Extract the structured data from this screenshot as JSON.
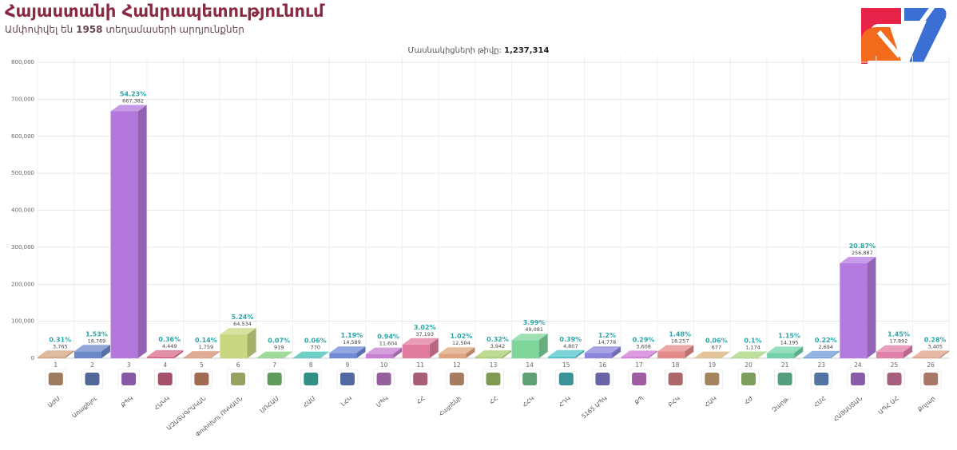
{
  "header": {
    "title": "Հայաստանի Հանրապետությունում",
    "subtitle_prefix": "Ամփոփվել են ",
    "subtitle_count": "1958",
    "subtitle_suffix": " տեղամասերի արդյունքներ"
  },
  "voters": {
    "label": "Մասնակիցների թիվը:",
    "value": "1,237,314"
  },
  "colors": {
    "background": "#ffffff",
    "title": "#8a2a42",
    "percent_label": "#2aa5a8",
    "logo_red": "#e8234a",
    "logo_orange": "#f26a1b",
    "logo_blue": "#3b6fd4"
  },
  "chart_data": {
    "type": "bar",
    "ylim": [
      0,
      800000
    ],
    "yticks": [
      "0",
      "100,000",
      "200,000",
      "300,000",
      "400,000",
      "500,000",
      "600,000",
      "700,000",
      "800,000"
    ],
    "grid": true,
    "categories": [
      {
        "num": "1",
        "name": "ԱԺՄ",
        "percent": "0.31%",
        "value": 3765,
        "label": "3,765",
        "color": "#d3a37f",
        "icon": "orange-square-logo"
      },
      {
        "num": "2",
        "name": "Առաքելու",
        "percent": "1.53%",
        "value": 18769,
        "label": "18,769",
        "color": "#6b89c9",
        "icon": "stripes-circle-logo"
      },
      {
        "num": "3",
        "name": "ՔՊԿ",
        "percent": "54.23%",
        "value": 667382,
        "label": "667,382",
        "color": "#b478dc",
        "icon": "purple-square-logo"
      },
      {
        "num": "4",
        "name": "ՀԱԿԿ",
        "percent": "0.36%",
        "value": 4449,
        "label": "4,449",
        "color": "#d96a8a",
        "icon": "emblem-logo"
      },
      {
        "num": "5",
        "name": "ԱԶԱՏԱԳՐԱԿԱՆ",
        "percent": "0.14%",
        "value": 1759,
        "label": "1,759",
        "color": "#d58f6f",
        "icon": "diagonal-stripes-logo"
      },
      {
        "num": "6",
        "name": "Փոփոխու ՈԿԿԱՍՆ",
        "percent": "5.24%",
        "value": 64534,
        "label": "64,534",
        "color": "#c9d880",
        "icon": "star-logo"
      },
      {
        "num": "7",
        "name": "ՍՈՀԱՄ",
        "percent": "0.07%",
        "value": 919,
        "label": "919",
        "color": "#7ecf78",
        "icon": "lhk-text-logo"
      },
      {
        "num": "8",
        "name": "ՀԱՄ",
        "percent": "0.06%",
        "value": 770,
        "label": "770",
        "color": "#3fc0b2",
        "icon": "hexagon-logo"
      },
      {
        "num": "9",
        "name": "ԼՀԿ",
        "percent": "1.19%",
        "value": 14589,
        "label": "14,589",
        "color": "#6f8ad6",
        "icon": "purple-banner-logo"
      },
      {
        "num": "10",
        "name": "ՍՊԿ",
        "percent": "0.94%",
        "value": 11604,
        "label": "11,604",
        "color": "#c77fd1",
        "icon": "mountain-logo"
      },
      {
        "num": "11",
        "name": "ՀՀ",
        "percent": "3.02%",
        "value": 37193,
        "label": "37,193",
        "color": "#e07b9e",
        "icon": "ornament-logo"
      },
      {
        "num": "12",
        "name": "Հայրենի",
        "percent": "1.02%",
        "value": 12504,
        "label": "12,504",
        "color": "#dda47e",
        "icon": "flower-logo"
      },
      {
        "num": "13",
        "name": "ՀՀ",
        "percent": "0.32%",
        "value": 3942,
        "label": "3,942",
        "color": "#a9cf6e",
        "icon": "flag-logo"
      },
      {
        "num": "14",
        "name": "ՀՀԿ",
        "percent": "3.99%",
        "value": 49081,
        "label": "49,081",
        "color": "#7ed69a",
        "icon": "wing-logo"
      },
      {
        "num": "15",
        "name": "ՀԴԿ",
        "percent": "0.39%",
        "value": 4807,
        "label": "4,807",
        "color": "#4fc4c9",
        "icon": "red-figure-logo"
      },
      {
        "num": "16",
        "name": "5165 ԱՊԿ",
        "percent": "1.2%",
        "value": 14778,
        "label": "14,778",
        "color": "#8b85dc",
        "icon": "5165-logo"
      },
      {
        "num": "17",
        "name": "ՔՊ",
        "percent": "0.29%",
        "value": 3608,
        "label": "3,608",
        "color": "#d27ad7",
        "icon": "green-shield-logo"
      },
      {
        "num": "18",
        "name": "ԲՀԿ",
        "percent": "1.48%",
        "value": 18257,
        "label": "18,257",
        "color": "#e58a8a",
        "icon": "text-line-logo"
      },
      {
        "num": "19",
        "name": "ՀԱԿ",
        "percent": "0.06%",
        "value": 677,
        "label": "677",
        "color": "#d9b07a",
        "icon": "dark-square-logo"
      },
      {
        "num": "20",
        "name": "ՀԺ",
        "percent": "0.1%",
        "value": 1174,
        "label": "1,174",
        "color": "#a7d47b",
        "icon": "arc-logo"
      },
      {
        "num": "21",
        "name": "Զարթ.",
        "percent": "1.15%",
        "value": 14195,
        "label": "14,195",
        "color": "#72d3a8",
        "icon": "eagle-logo"
      },
      {
        "num": "23",
        "name": "ՀՄՀ",
        "percent": "0.22%",
        "value": 2694,
        "label": "2,694",
        "color": "#6f9ad8",
        "icon": "stars-banner-logo"
      },
      {
        "num": "24",
        "name": "ՀԱՅԱՍՏԱՆ",
        "percent": "20.87%",
        "value": 256887,
        "label": "256,887",
        "color": "#b57ae0",
        "icon": "red-text-logo"
      },
      {
        "num": "25",
        "name": "ԱՊՀ ԱՀ",
        "percent": "1.45%",
        "value": 17892,
        "label": "17,892",
        "color": "#e07fa8",
        "icon": "bird-logo"
      },
      {
        "num": "26",
        "name": "Քոչար",
        "percent": "0.28%",
        "value": 3405,
        "label": "3,405",
        "color": "#e0a08a",
        "icon": "gold-emblem-logo"
      }
    ]
  }
}
